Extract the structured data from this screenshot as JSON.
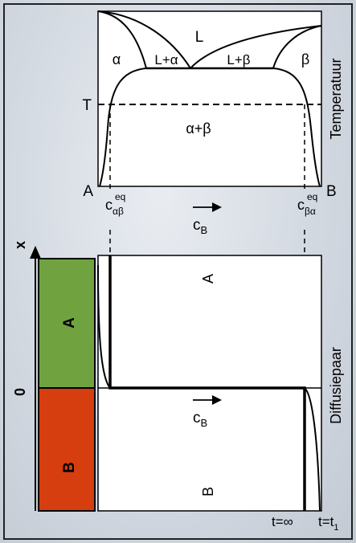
{
  "phase_diagram": {
    "phase_L": "L",
    "phase_alpha": "α",
    "phase_L_alpha": "L+α",
    "phase_L_beta": "L+β",
    "phase_beta": "β",
    "phase_alpha_beta": "α+β",
    "temperature_mark": "T",
    "left_component": "A",
    "right_component": "B",
    "axis_label": "Temperatuur",
    "c_alpha_beta": {
      "main": "c",
      "sub": "αβ",
      "sup": "eq"
    },
    "c_beta_alpha": {
      "main": "c",
      "sub": "βα",
      "sup": "eq"
    },
    "composition_axis": {
      "main": "c",
      "sub": "B"
    }
  },
  "diffusion_pair": {
    "position_axis": "x",
    "origin": "0",
    "block_A": "A",
    "block_B": "B",
    "region_A": "A",
    "region_B": "B",
    "composition_axis": {
      "main": "c",
      "sub": "B"
    },
    "time_infinite": "t=∞",
    "time_t1": {
      "main": "t=t",
      "sub": "1"
    },
    "axis_label": "Diffusiepaar"
  },
  "colors": {
    "block_A": "#70a340",
    "block_B": "#d63e0f",
    "line": "#000000",
    "frame_border": "#222222"
  }
}
